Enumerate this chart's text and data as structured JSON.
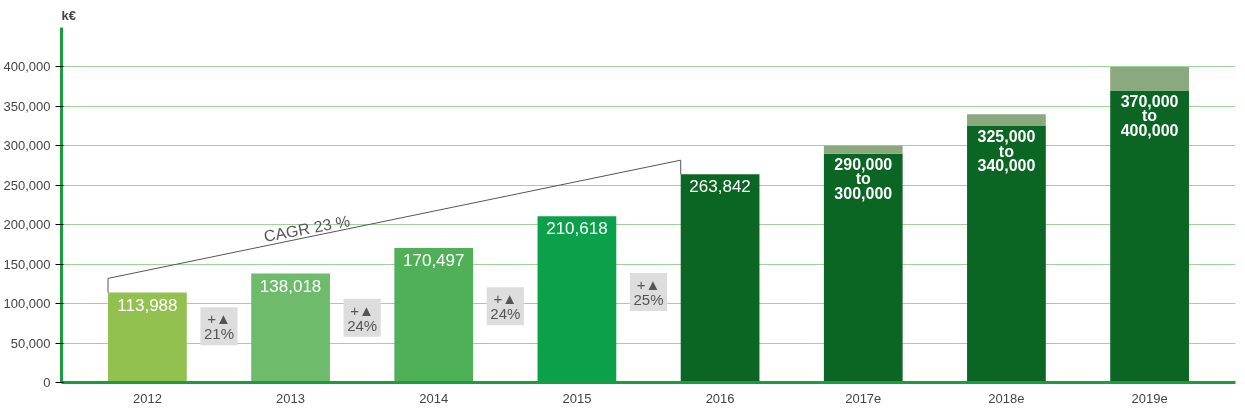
{
  "chart_data": {
    "type": "bar",
    "ylabel": "k€",
    "categories": [
      "2012",
      "2013",
      "2014",
      "2015",
      "2016",
      "2017e",
      "2018e",
      "2019e"
    ],
    "stacked": true,
    "series": [
      {
        "colors": [
          "#92c150",
          "#6dbb6b",
          "#50b058",
          "#0aa14a",
          "#0b6623",
          "#0b6623",
          "#0b6623",
          "#0b6623"
        ],
        "values": [
          113988,
          138018,
          170497,
          210618,
          263842,
          290000,
          325000,
          370000
        ],
        "value_labels": [
          "113,988",
          "138,018",
          "170,497",
          "210,618",
          "263,842",
          "290,000\nto\n300,000",
          "325,000\nto\n340,000",
          "370,000\nto\n400,000"
        ]
      },
      {
        "color": "#8aa97f",
        "values": [
          null,
          null,
          null,
          null,
          null,
          10000,
          15000,
          30000
        ]
      }
    ],
    "ylim": [
      0,
      450000
    ],
    "yticks": [
      0,
      {
        "value": 50000,
        "label": "50,000"
      },
      {
        "value": 100000,
        "label": "100,000"
      },
      {
        "value": 150000,
        "label": "150,000"
      },
      {
        "value": 200000,
        "label": "200,000"
      },
      {
        "value": 250000,
        "label": "250,000"
      },
      {
        "value": 300000,
        "label": "300,000"
      },
      {
        "value": 350000,
        "label": "350,000"
      },
      {
        "value": 400000,
        "label": "400,000"
      }
    ],
    "grid": "y",
    "annotations": [
      "CAGR 23 %",
      "+▲\n21%",
      "+▲\n24%",
      "+▲\n24%",
      "+▲\n25%"
    ]
  }
}
